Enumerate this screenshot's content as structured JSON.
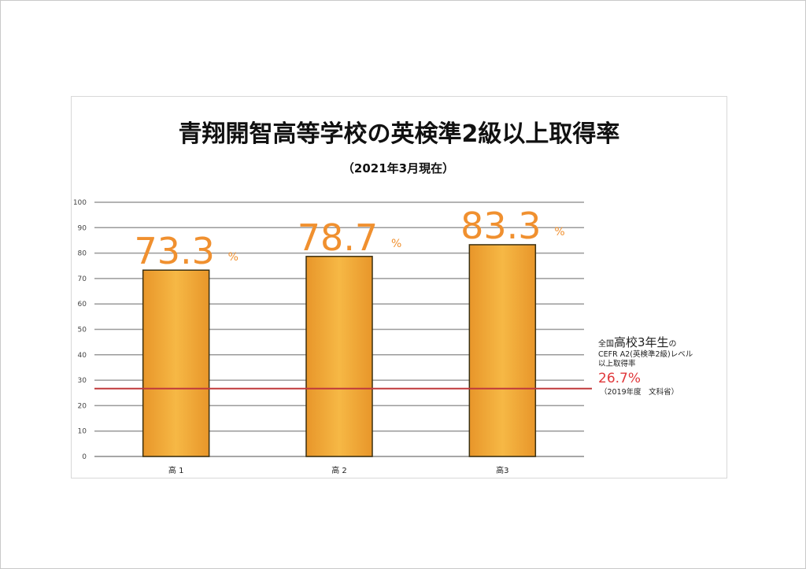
{
  "chart_data": {
    "type": "bar",
    "title": "青翔開智高等学校の英検準2級以上取得率",
    "subtitle": "（2021年3月現在）",
    "categories": [
      "高 1",
      "高 2",
      "高3"
    ],
    "values": [
      73.3,
      78.7,
      83.3
    ],
    "value_labels": [
      "73.3",
      "78.7",
      "83.3"
    ],
    "value_unit": "%",
    "ylim": [
      0,
      100
    ],
    "yticks": [
      0,
      10,
      20,
      30,
      40,
      50,
      60,
      70,
      80,
      90,
      100
    ],
    "grid": true,
    "reference_line": {
      "value": 26.7,
      "color": "#c0393b",
      "label_prefix_small": "全国",
      "label_prefix_big": "高校3年生",
      "label_suffix_small": "の",
      "label_line2": "CEFR A2(英検準2級)レベル",
      "label_line3": "以上取得率",
      "value_text": "26.7%",
      "source": "（2019年度　文科省）"
    },
    "bar_color": "#f2a630",
    "label_color": "#f0902f"
  }
}
